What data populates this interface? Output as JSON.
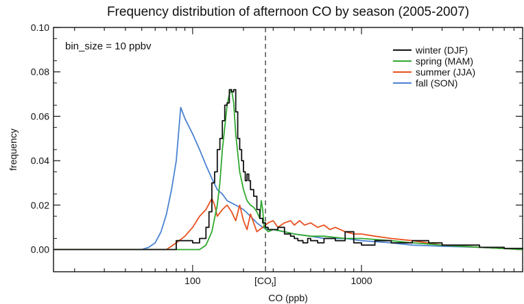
{
  "chart_data": {
    "type": "line",
    "title": "Frequency distribution of afternoon CO by season (2005-2007)",
    "xlabel": "CO (ppb)",
    "ylabel": "frequency",
    "xscale": "log",
    "xlim": [
      15,
      9000
    ],
    "ylim": [
      -0.01,
      0.1
    ],
    "xticks": [
      {
        "value": 100,
        "label": "100"
      },
      {
        "value": 1000,
        "label": "1000"
      }
    ],
    "yticks": [
      {
        "value": 0.0,
        "label": "0.00"
      },
      {
        "value": 0.02,
        "label": "0.02"
      },
      {
        "value": 0.04,
        "label": "0.04"
      },
      {
        "value": 0.06,
        "label": "0.06"
      },
      {
        "value": 0.08,
        "label": "0.08"
      },
      {
        "value": 0.1,
        "label": "0.10"
      }
    ],
    "grid": false,
    "legend": "top-right",
    "annotations": {
      "bin_size": "bin_size = 10 ppbv",
      "reference_line": {
        "x": 270,
        "label_main": "[CO",
        "label_sub": "t",
        "label_close": "]"
      }
    },
    "series": [
      {
        "name": "winter (DJF)",
        "color": "#111111",
        "step": true,
        "points": [
          [
            15,
            0
          ],
          [
            75,
            0
          ],
          [
            80,
            0.004
          ],
          [
            90,
            0.004
          ],
          [
            100,
            0.003
          ],
          [
            110,
            0.005
          ],
          [
            120,
            0.01
          ],
          [
            125,
            0.017
          ],
          [
            130,
            0.03
          ],
          [
            135,
            0.035
          ],
          [
            140,
            0.045
          ],
          [
            145,
            0.05
          ],
          [
            150,
            0.058
          ],
          [
            155,
            0.065
          ],
          [
            160,
            0.066
          ],
          [
            165,
            0.072
          ],
          [
            170,
            0.071
          ],
          [
            175,
            0.072
          ],
          [
            180,
            0.062
          ],
          [
            185,
            0.05
          ],
          [
            190,
            0.045
          ],
          [
            195,
            0.04
          ],
          [
            200,
            0.035
          ],
          [
            205,
            0.031
          ],
          [
            210,
            0.034
          ],
          [
            215,
            0.031
          ],
          [
            220,
            0.027
          ],
          [
            230,
            0.024
          ],
          [
            240,
            0.018
          ],
          [
            250,
            0.014
          ],
          [
            260,
            0.012
          ],
          [
            270,
            0.01
          ],
          [
            280,
            0.009
          ],
          [
            300,
            0.009
          ],
          [
            320,
            0.01
          ],
          [
            350,
            0.007
          ],
          [
            380,
            0.006
          ],
          [
            400,
            0.005
          ],
          [
            420,
            0.004
          ],
          [
            450,
            0.003
          ],
          [
            480,
            0.005
          ],
          [
            500,
            0.004
          ],
          [
            550,
            0.003
          ],
          [
            600,
            0.005
          ],
          [
            700,
            0.004
          ],
          [
            800,
            0.008
          ],
          [
            900,
            0.003
          ],
          [
            1000,
            0.002
          ],
          [
            1200,
            0.004
          ],
          [
            1500,
            0.003
          ],
          [
            2000,
            0.004
          ],
          [
            2500,
            0.003
          ],
          [
            3000,
            0.002
          ],
          [
            4000,
            0.002
          ],
          [
            5000,
            0.001
          ],
          [
            7000,
            0.0005
          ],
          [
            9000,
            0
          ]
        ]
      },
      {
        "name": "spring (MAM)",
        "color": "#2ea82e",
        "step": false,
        "points": [
          [
            15,
            0
          ],
          [
            110,
            0
          ],
          [
            120,
            0.002
          ],
          [
            130,
            0.008
          ],
          [
            140,
            0.02
          ],
          [
            145,
            0.03
          ],
          [
            150,
            0.045
          ],
          [
            155,
            0.055
          ],
          [
            160,
            0.065
          ],
          [
            165,
            0.07
          ],
          [
            170,
            0.072
          ],
          [
            175,
            0.066
          ],
          [
            180,
            0.052
          ],
          [
            190,
            0.035
          ],
          [
            200,
            0.027
          ],
          [
            210,
            0.022
          ],
          [
            220,
            0.02
          ],
          [
            230,
            0.019
          ],
          [
            240,
            0.017
          ],
          [
            250,
            0.014
          ],
          [
            255,
            0.022
          ],
          [
            260,
            0.018
          ],
          [
            265,
            0.01
          ],
          [
            280,
            0.008
          ],
          [
            300,
            0.009
          ],
          [
            350,
            0.008
          ],
          [
            400,
            0.007
          ],
          [
            500,
            0.006
          ],
          [
            600,
            0.006
          ],
          [
            800,
            0.005
          ],
          [
            1000,
            0.005
          ],
          [
            1500,
            0.004
          ],
          [
            2000,
            0.003
          ],
          [
            3000,
            0.002
          ],
          [
            5000,
            0.001
          ],
          [
            9000,
            0
          ]
        ]
      },
      {
        "name": "summer (JJA)",
        "color": "#e8501e",
        "step": false,
        "points": [
          [
            15,
            0
          ],
          [
            70,
            0
          ],
          [
            80,
            0.003
          ],
          [
            90,
            0.006
          ],
          [
            100,
            0.01
          ],
          [
            110,
            0.015
          ],
          [
            120,
            0.018
          ],
          [
            130,
            0.023
          ],
          [
            135,
            0.02
          ],
          [
            140,
            0.015
          ],
          [
            150,
            0.018
          ],
          [
            160,
            0.02
          ],
          [
            170,
            0.017
          ],
          [
            180,
            0.013
          ],
          [
            190,
            0.02
          ],
          [
            200,
            0.013
          ],
          [
            210,
            0.009
          ],
          [
            220,
            0.016
          ],
          [
            240,
            0.008
          ],
          [
            260,
            0.01
          ],
          [
            280,
            0.012
          ],
          [
            300,
            0.013
          ],
          [
            320,
            0.01
          ],
          [
            350,
            0.012
          ],
          [
            380,
            0.013
          ],
          [
            400,
            0.011
          ],
          [
            430,
            0.013
          ],
          [
            460,
            0.011
          ],
          [
            500,
            0.012
          ],
          [
            550,
            0.01
          ],
          [
            600,
            0.011
          ],
          [
            650,
            0.009
          ],
          [
            700,
            0.01
          ],
          [
            800,
            0.008
          ],
          [
            900,
            0.007
          ],
          [
            1000,
            0.007
          ],
          [
            1200,
            0.006
          ],
          [
            1500,
            0.005
          ],
          [
            2000,
            0.004
          ],
          [
            3000,
            0.002
          ],
          [
            5000,
            0.001
          ],
          [
            9000,
            0
          ]
        ]
      },
      {
        "name": "fall (SON)",
        "color": "#4a82d2",
        "step": false,
        "points": [
          [
            15,
            0
          ],
          [
            50,
            0
          ],
          [
            55,
            0.001
          ],
          [
            60,
            0.003
          ],
          [
            65,
            0.008
          ],
          [
            70,
            0.016
          ],
          [
            75,
            0.027
          ],
          [
            80,
            0.04
          ],
          [
            85,
            0.064
          ],
          [
            90,
            0.059
          ],
          [
            100,
            0.052
          ],
          [
            110,
            0.045
          ],
          [
            120,
            0.038
          ],
          [
            130,
            0.032
          ],
          [
            140,
            0.027
          ],
          [
            150,
            0.025
          ],
          [
            160,
            0.022
          ],
          [
            180,
            0.02
          ],
          [
            200,
            0.018
          ],
          [
            220,
            0.015
          ],
          [
            240,
            0.012
          ],
          [
            260,
            0.01
          ],
          [
            280,
            0.009
          ],
          [
            300,
            0.009
          ],
          [
            350,
            0.008
          ],
          [
            400,
            0.007
          ],
          [
            500,
            0.006
          ],
          [
            600,
            0.005
          ],
          [
            800,
            0.005
          ],
          [
            1000,
            0.004
          ],
          [
            1500,
            0.003
          ],
          [
            2000,
            0.002
          ],
          [
            3000,
            0.0015
          ],
          [
            5000,
            0.001
          ],
          [
            9000,
            0
          ]
        ]
      }
    ]
  }
}
